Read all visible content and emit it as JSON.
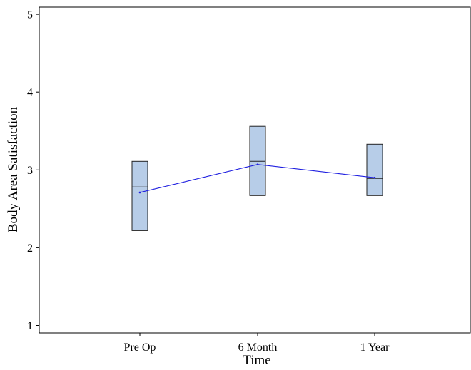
{
  "chart_data": {
    "type": "box",
    "title": "",
    "xlabel": "Time",
    "ylabel": "Body Area Satisfaction",
    "categories": [
      "Pre Op",
      "6 Month",
      "1 Year"
    ],
    "ylim": [
      1,
      5
    ],
    "yticks": [
      "1",
      "2",
      "3",
      "4",
      "5"
    ],
    "grid": false,
    "legend": "none",
    "boxes": [
      {
        "category": "Pre Op",
        "q1": 2.22,
        "median": 2.78,
        "q3": 3.11
      },
      {
        "category": "6 Month",
        "q1": 2.67,
        "median": 3.11,
        "q3": 3.56
      },
      {
        "category": "1 Year",
        "q1": 2.67,
        "median": 2.89,
        "q3": 3.33
      }
    ],
    "mean_line": [
      2.71,
      3.07,
      2.9
    ],
    "colors": {
      "box_fill": "#b7cde8",
      "box_stroke": "#222222",
      "mean_line": "#1f1fe0"
    }
  }
}
